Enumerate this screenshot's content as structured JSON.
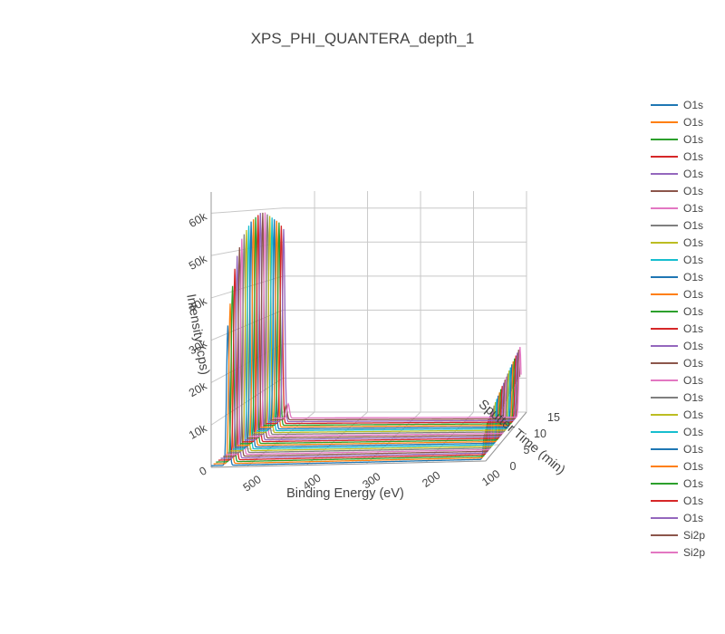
{
  "chart_data": {
    "type": "line",
    "title": "XPS_PHI_QUANTERA_depth_1",
    "x_axis": {
      "label": "Binding Energy (eV)",
      "ticks": [
        "500",
        "400",
        "300",
        "200",
        "100"
      ],
      "range": [
        560,
        100
      ]
    },
    "y_axis": {
      "label": "Sputter Time (min)",
      "ticks": [
        "0",
        "5",
        "10",
        "15"
      ],
      "range": [
        0,
        15
      ]
    },
    "z_axis": {
      "label": "Intensity (cps)",
      "ticks": [
        "0",
        "10k",
        "20k",
        "30k",
        "40k",
        "50k",
        "60k"
      ],
      "range": [
        0,
        65000
      ]
    },
    "grid": true,
    "legend_position": "right",
    "o1s_peak_energy": 532,
    "si2p_peak_energy": 102,
    "series": [
      {
        "name": "O1s",
        "color": "#1f77b4",
        "sputter_time": 0.0,
        "o1s_peak": 33000,
        "si2p_peak": 6000
      },
      {
        "name": "O1s",
        "color": "#ff7f0e",
        "sputter_time": 0.5,
        "o1s_peak": 38000,
        "si2p_peak": 7000
      },
      {
        "name": "O1s",
        "color": "#2ca02c",
        "sputter_time": 1.0,
        "o1s_peak": 42000,
        "si2p_peak": 8000
      },
      {
        "name": "O1s",
        "color": "#d62728",
        "sputter_time": 1.5,
        "o1s_peak": 46000,
        "si2p_peak": 8500
      },
      {
        "name": "O1s",
        "color": "#9467bd",
        "sputter_time": 2.0,
        "o1s_peak": 49000,
        "si2p_peak": 9000
      },
      {
        "name": "O1s",
        "color": "#8c564b",
        "sputter_time": 2.5,
        "o1s_peak": 51000,
        "si2p_peak": 9500
      },
      {
        "name": "O1s",
        "color": "#e377c2",
        "sputter_time": 3.0,
        "o1s_peak": 53000,
        "si2p_peak": 10000
      },
      {
        "name": "O1s",
        "color": "#7f7f7f",
        "sputter_time": 3.5,
        "o1s_peak": 54000,
        "si2p_peak": 10500
      },
      {
        "name": "O1s",
        "color": "#bcbd22",
        "sputter_time": 4.0,
        "o1s_peak": 55000,
        "si2p_peak": 11000
      },
      {
        "name": "O1s",
        "color": "#17becf",
        "sputter_time": 4.5,
        "o1s_peak": 56000,
        "si2p_peak": 11500
      },
      {
        "name": "O1s",
        "color": "#1f77b4",
        "sputter_time": 5.0,
        "o1s_peak": 57000,
        "si2p_peak": 12000
      },
      {
        "name": "O1s",
        "color": "#ff7f0e",
        "sputter_time": 5.5,
        "o1s_peak": 57500,
        "si2p_peak": 12500
      },
      {
        "name": "O1s",
        "color": "#2ca02c",
        "sputter_time": 6.0,
        "o1s_peak": 58000,
        "si2p_peak": 13000
      },
      {
        "name": "O1s",
        "color": "#d62728",
        "sputter_time": 6.5,
        "o1s_peak": 58500,
        "si2p_peak": 13500
      },
      {
        "name": "O1s",
        "color": "#9467bd",
        "sputter_time": 7.0,
        "o1s_peak": 59000,
        "si2p_peak": 14000
      },
      {
        "name": "O1s",
        "color": "#8c564b",
        "sputter_time": 7.5,
        "o1s_peak": 59000,
        "si2p_peak": 14500
      },
      {
        "name": "O1s",
        "color": "#e377c2",
        "sputter_time": 8.0,
        "o1s_peak": 59000,
        "si2p_peak": 15000
      },
      {
        "name": "O1s",
        "color": "#7f7f7f",
        "sputter_time": 8.5,
        "o1s_peak": 58500,
        "si2p_peak": 15500
      },
      {
        "name": "O1s",
        "color": "#bcbd22",
        "sputter_time": 9.0,
        "o1s_peak": 58000,
        "si2p_peak": 16000
      },
      {
        "name": "O1s",
        "color": "#17becf",
        "sputter_time": 9.5,
        "o1s_peak": 57500,
        "si2p_peak": 16500
      },
      {
        "name": "O1s",
        "color": "#1f77b4",
        "sputter_time": 10.0,
        "o1s_peak": 57000,
        "si2p_peak": 17000
      },
      {
        "name": "O1s",
        "color": "#ff7f0e",
        "sputter_time": 10.5,
        "o1s_peak": 56500,
        "si2p_peak": 17500
      },
      {
        "name": "O1s",
        "color": "#2ca02c",
        "sputter_time": 11.0,
        "o1s_peak": 56000,
        "si2p_peak": 18000
      },
      {
        "name": "O1s",
        "color": "#d62728",
        "sputter_time": 11.5,
        "o1s_peak": 55000,
        "si2p_peak": 18500
      },
      {
        "name": "O1s",
        "color": "#9467bd",
        "sputter_time": 12.0,
        "o1s_peak": 54000,
        "si2p_peak": 19000
      },
      {
        "name": "Si2p",
        "color": "#8c564b",
        "sputter_time": 12.5,
        "o1s_peak": 4000,
        "si2p_peak": 19500
      },
      {
        "name": "Si2p",
        "color": "#e377c2",
        "sputter_time": 13.0,
        "o1s_peak": 4000,
        "si2p_peak": 20000
      }
    ]
  }
}
